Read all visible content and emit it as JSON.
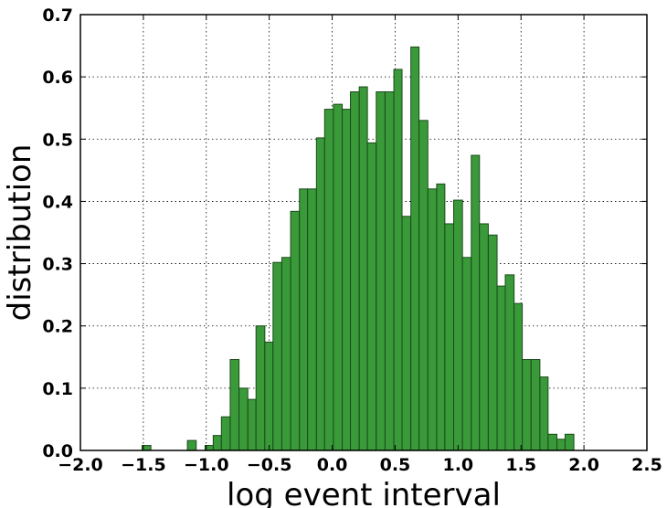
{
  "chart_data": {
    "type": "bar",
    "title": "",
    "xlabel": "log event interval",
    "ylabel": "distribution",
    "xlim": [
      -2.0,
      2.5
    ],
    "ylim": [
      0.0,
      0.7
    ],
    "xticks": [
      "−2.0",
      "−1.5",
      "−1.0",
      "−0.5",
      "0.0",
      "0.5",
      "1.0",
      "1.5",
      "2.0",
      "2.5"
    ],
    "yticks": [
      "0.0",
      "0.1",
      "0.2",
      "0.3",
      "0.4",
      "0.5",
      "0.6",
      "0.7"
    ],
    "grid": true,
    "bar_color": "#3a9a3a",
    "bar_edge_color": "#1a4a1a",
    "bins": [
      [
        -1.51,
        -1.44,
        0.008
      ],
      [
        -1.15,
        -1.08,
        0.016
      ],
      [
        -1.01,
        -0.945,
        0.008
      ],
      [
        -0.945,
        -0.88,
        0.024
      ],
      [
        -0.88,
        -0.81,
        0.054
      ],
      [
        -0.81,
        -0.74,
        0.146
      ],
      [
        -0.74,
        -0.67,
        0.1
      ],
      [
        -0.67,
        -0.605,
        0.082
      ],
      [
        -0.605,
        -0.535,
        0.2
      ],
      [
        -0.535,
        -0.47,
        0.174
      ],
      [
        -0.47,
        -0.4,
        0.302
      ],
      [
        -0.4,
        -0.33,
        0.31
      ],
      [
        -0.33,
        -0.26,
        0.384
      ],
      [
        -0.26,
        -0.195,
        0.42
      ],
      [
        -0.195,
        -0.125,
        0.42
      ],
      [
        -0.125,
        -0.06,
        0.502
      ],
      [
        -0.06,
        0.01,
        0.548
      ],
      [
        0.01,
        0.08,
        0.556
      ],
      [
        0.08,
        0.145,
        0.548
      ],
      [
        0.145,
        0.215,
        0.576
      ],
      [
        0.215,
        0.28,
        0.584
      ],
      [
        0.28,
        0.35,
        0.494
      ],
      [
        0.35,
        0.42,
        0.576
      ],
      [
        0.42,
        0.49,
        0.576
      ],
      [
        0.49,
        0.555,
        0.612
      ],
      [
        0.555,
        0.625,
        0.376
      ],
      [
        0.625,
        0.69,
        0.648
      ],
      [
        0.69,
        0.76,
        0.53
      ],
      [
        0.76,
        0.83,
        0.42
      ],
      [
        0.83,
        0.895,
        0.428
      ],
      [
        0.895,
        0.965,
        0.364
      ],
      [
        0.965,
        1.035,
        0.402
      ],
      [
        1.035,
        1.105,
        0.31
      ],
      [
        1.105,
        1.17,
        0.474
      ],
      [
        1.17,
        1.24,
        0.364
      ],
      [
        1.24,
        1.31,
        0.346
      ],
      [
        1.31,
        1.375,
        0.264
      ],
      [
        1.375,
        1.445,
        0.282
      ],
      [
        1.445,
        1.51,
        0.236
      ],
      [
        1.51,
        1.58,
        0.146
      ],
      [
        1.58,
        1.65,
        0.146
      ],
      [
        1.65,
        1.715,
        0.118
      ],
      [
        1.715,
        1.785,
        0.026
      ],
      [
        1.785,
        1.85,
        0.018
      ],
      [
        1.85,
        1.92,
        0.026
      ]
    ]
  }
}
